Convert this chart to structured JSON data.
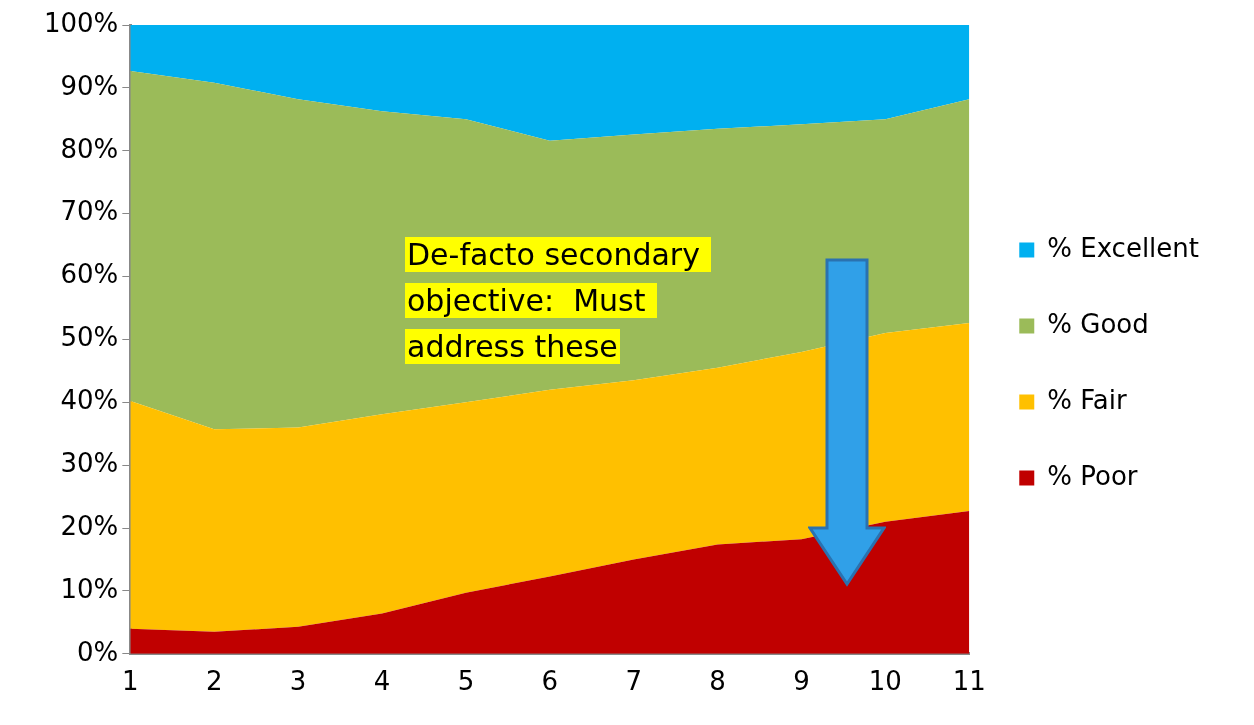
{
  "chart_data": {
    "type": "area",
    "stacked": true,
    "categories": [
      "1",
      "2",
      "3",
      "4",
      "5",
      "6",
      "7",
      "8",
      "9",
      "10",
      "11"
    ],
    "series": [
      {
        "name": "% Poor",
        "color": "#c00000",
        "values": [
          4,
          3.5,
          4.3,
          6.4,
          9.7,
          12.3,
          15,
          17.4,
          18.2,
          21,
          22.7
        ]
      },
      {
        "name": "% Fair",
        "color": "#ffc000",
        "values": [
          36.2,
          32.2,
          31.7,
          31.7,
          30.3,
          29.7,
          28.5,
          28.1,
          29.8,
          30,
          29.9
        ]
      },
      {
        "name": "% Good",
        "color": "#9bbb59",
        "values": [
          52.5,
          55.1,
          52.2,
          48.2,
          45,
          39.6,
          39.1,
          38,
          36.2,
          34,
          35.6
        ]
      },
      {
        "name": "% Excellent",
        "color": "#00b0f0",
        "values": [
          7.3,
          9.2,
          11.8,
          13.7,
          15,
          18.4,
          17.4,
          16.5,
          15.8,
          15,
          11.8
        ]
      }
    ],
    "ylim": [
      0,
      100
    ],
    "yticks": [
      {
        "value": 0,
        "label": "0%"
      },
      {
        "value": 10,
        "label": "10%"
      },
      {
        "value": 20,
        "label": "20%"
      },
      {
        "value": 30,
        "label": "30%"
      },
      {
        "value": 40,
        "label": "40%"
      },
      {
        "value": 50,
        "label": "50%"
      },
      {
        "value": 60,
        "label": "60%"
      },
      {
        "value": 70,
        "label": "70%"
      },
      {
        "value": 80,
        "label": "80%"
      },
      {
        "value": 90,
        "label": "90%"
      },
      {
        "value": 100,
        "label": "100%"
      }
    ],
    "grid": false,
    "legend": "right",
    "annotations": [
      "De-facto secondary \nobjective:  Must \naddress these"
    ]
  }
}
